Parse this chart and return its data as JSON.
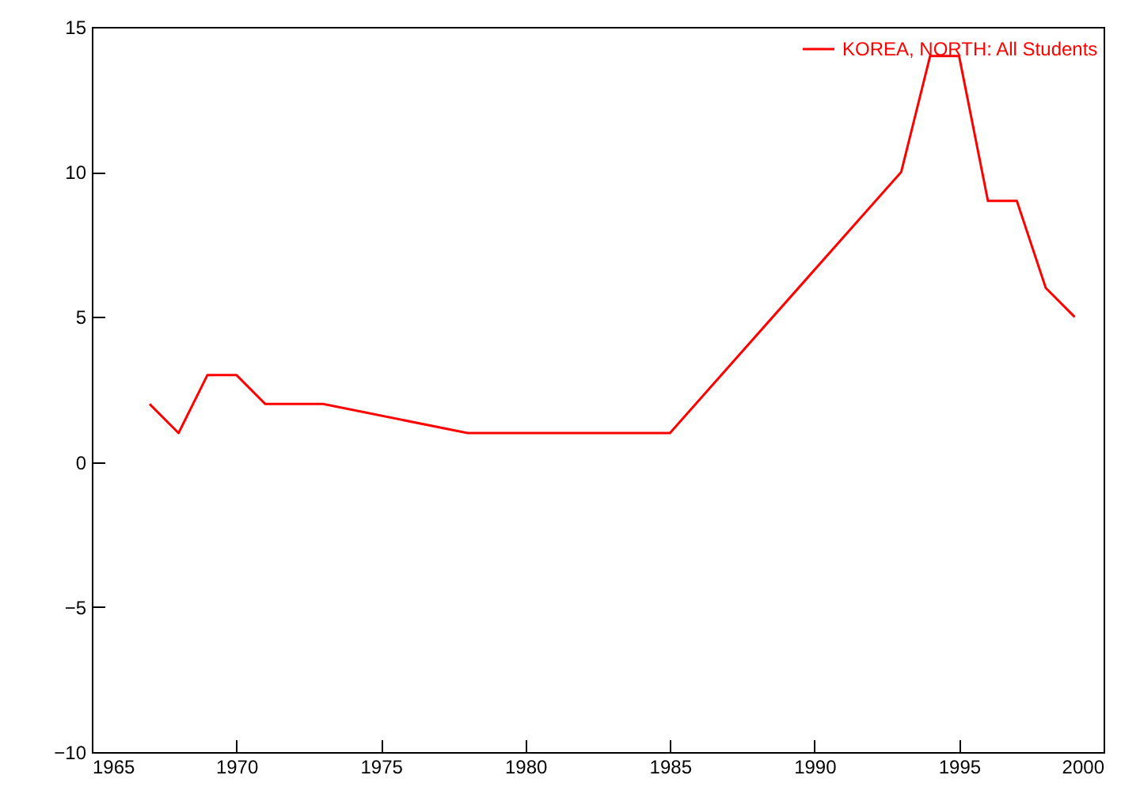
{
  "chart_data": {
    "type": "line",
    "xlim": [
      1965,
      2000
    ],
    "xticks": [
      1965,
      1970,
      1975,
      1980,
      1985,
      1990,
      1995,
      2000
    ],
    "ylim": [
      -10,
      15
    ],
    "yticks": [
      -10,
      -5,
      0,
      5,
      10,
      15
    ],
    "grid": false,
    "legend": "top right",
    "series": [
      {
        "name": "KOREA, NORTH: All Students",
        "color": "#ff0000",
        "x": [
          1967,
          1968,
          1969,
          1970,
          1971,
          1973,
          1978,
          1985,
          1993,
          1994,
          1995,
          1996,
          1997,
          1998,
          1999
        ],
        "values": [
          2,
          1,
          3,
          3,
          2,
          2,
          1,
          1,
          10,
          14,
          14,
          9,
          9,
          6,
          5
        ]
      }
    ]
  }
}
